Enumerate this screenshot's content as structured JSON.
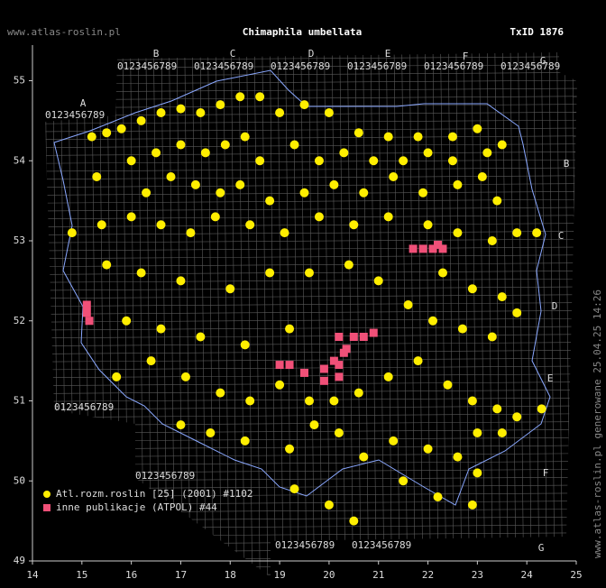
{
  "chart_data": {
    "type": "scatter",
    "site": "www.atlas-roslin.pl",
    "title": "Chimaphila umbellata",
    "taxon_id": "TxID 1876",
    "side_note": "www.atlas-roslin.pl generowane 25.04.25 14:26",
    "grid_letters": [
      "A",
      "B",
      "C",
      "D",
      "E",
      "F",
      "G"
    ],
    "grid_digits": "0123456789",
    "xlim": [
      14,
      25
    ],
    "ylim": [
      49,
      55.4
    ],
    "xticks": [
      14,
      15,
      16,
      17,
      18,
      19,
      20,
      21,
      22,
      23,
      24,
      25
    ],
    "yticks": [
      49,
      50,
      51,
      52,
      53,
      54,
      55
    ],
    "series": [
      {
        "name": "Atl.rozm.roslin [25] (2001) #1102",
        "color": "#ffee00",
        "marker": "circle",
        "x": [
          15.2,
          15.5,
          15.8,
          16.2,
          16.6,
          17.0,
          17.4,
          17.8,
          18.2,
          18.6,
          19.0,
          19.5,
          20.0,
          20.6,
          21.2,
          21.8,
          22.5,
          23.0,
          16.0,
          16.5,
          17.0,
          17.5,
          17.9,
          18.3,
          18.6,
          19.3,
          19.8,
          20.3,
          20.9,
          21.5,
          22.0,
          22.5,
          23.2,
          23.5,
          15.3,
          16.3,
          16.8,
          17.3,
          17.8,
          18.2,
          18.8,
          19.5,
          20.1,
          20.7,
          21.3,
          21.9,
          22.6,
          23.1,
          23.4,
          14.8,
          15.4,
          16.0,
          16.6,
          17.2,
          17.7,
          18.4,
          19.1,
          19.8,
          20.5,
          21.2,
          22.0,
          22.6,
          23.3,
          23.8,
          15.5,
          16.2,
          17.0,
          18.0,
          18.8,
          19.6,
          20.4,
          21.0,
          22.3,
          22.9,
          23.5,
          15.9,
          16.6,
          17.4,
          18.3,
          19.2,
          21.6,
          22.1,
          22.7,
          23.3,
          23.8,
          15.7,
          16.4,
          17.1,
          17.8,
          18.4,
          19.0,
          19.6,
          20.1,
          20.6,
          21.2,
          21.8,
          22.4,
          22.9,
          23.4,
          23.8,
          17.0,
          17.6,
          18.3,
          19.2,
          19.7,
          20.2,
          20.7,
          21.3,
          22.0,
          22.6,
          23.0,
          23.5,
          19.3,
          20.0,
          20.5,
          21.5,
          22.2,
          22.9,
          23.0,
          24.3,
          24.2
        ],
        "values": [
          54.3,
          54.35,
          54.4,
          54.5,
          54.6,
          54.65,
          54.6,
          54.7,
          54.8,
          54.8,
          54.6,
          54.7,
          54.6,
          54.35,
          54.3,
          54.3,
          54.3,
          54.4,
          54.0,
          54.1,
          54.2,
          54.1,
          54.2,
          54.3,
          54.0,
          54.2,
          54.0,
          54.1,
          54.0,
          54.0,
          54.1,
          54.0,
          54.1,
          54.2,
          53.8,
          53.6,
          53.8,
          53.7,
          53.6,
          53.7,
          53.5,
          53.6,
          53.7,
          53.6,
          53.8,
          53.6,
          53.7,
          53.8,
          53.5,
          53.1,
          53.2,
          53.3,
          53.2,
          53.1,
          53.3,
          53.2,
          53.1,
          53.3,
          53.2,
          53.3,
          53.2,
          53.1,
          53.0,
          53.1,
          52.7,
          52.6,
          52.5,
          52.4,
          52.6,
          52.6,
          52.7,
          52.5,
          52.6,
          52.4,
          52.3,
          52.0,
          51.9,
          51.8,
          51.7,
          51.9,
          52.2,
          52.0,
          51.9,
          51.8,
          52.1,
          51.3,
          51.5,
          51.3,
          51.1,
          51.0,
          51.2,
          51.0,
          51.0,
          51.1,
          51.3,
          51.5,
          51.2,
          51.0,
          50.9,
          50.8,
          50.7,
          50.6,
          50.5,
          50.4,
          50.7,
          50.6,
          50.3,
          50.5,
          50.4,
          50.3,
          50.6,
          50.6,
          49.9,
          49.7,
          49.5,
          50.0,
          49.8,
          49.7,
          50.1,
          50.9,
          53.1
        ]
      },
      {
        "name": "inne publikacje (ATPOL) #44",
        "color": "#f05078",
        "marker": "square",
        "x": [
          15.1,
          15.1,
          15.15,
          21.7,
          21.9,
          22.1,
          22.2,
          22.3,
          19.0,
          19.2,
          19.5,
          19.9,
          20.1,
          20.2,
          20.3,
          20.5,
          20.7,
          20.9,
          20.2,
          19.9,
          20.2,
          20.35
        ],
        "values": [
          52.2,
          52.1,
          52.0,
          52.9,
          52.9,
          52.9,
          52.95,
          52.9,
          51.45,
          51.45,
          51.35,
          51.4,
          51.5,
          51.3,
          51.6,
          51.8,
          51.8,
          51.85,
          51.8,
          51.25,
          51.45,
          51.65
        ]
      }
    ]
  }
}
